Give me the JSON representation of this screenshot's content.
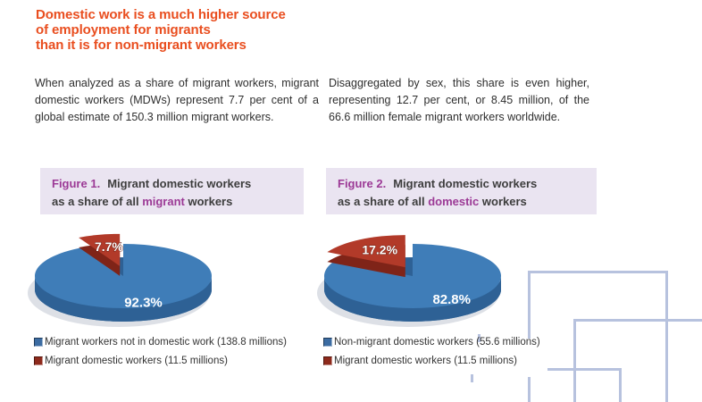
{
  "heading": {
    "text": "Domestic work is a much higher source\nof employment for migrants\nthan it is for non-migrant workers",
    "color": "#e94e1f"
  },
  "intro": {
    "left": "When analyzed as a share of migrant workers, migrant domestic workers (MDWs) represent 7.7 per cent of a global estimate of 150.3 million migrant workers.",
    "right": "Disaggregated by sex, this share is even higher, representing 12.7 per cent, or 8.45 million, of the 66.6 million female migrant workers worldwide."
  },
  "figures": [
    {
      "label": "Figure 1.",
      "title_line1": "Migrant domestic workers",
      "line2_pre": "as a share of all",
      "line2_highlight": "migrant",
      "line2_post": "workers"
    },
    {
      "label": "Figure 2.",
      "title_line1": "Migrant domestic workers",
      "line2_pre": "as a share of all",
      "line2_highlight": "domestic",
      "line2_post": "workers"
    }
  ],
  "chart_data": [
    {
      "type": "pie",
      "style": "3d-exploded",
      "legend_position": "below",
      "title": "Figure 1. Migrant domestic workers as a share of all migrant workers",
      "slices": [
        {
          "label": "Migrant workers not in domestic work (138.8 millions)",
          "value_pct": 92.3,
          "millions": 138.8,
          "display": "92.3%",
          "color": "#3f7db8",
          "wall": "#2e6195",
          "swatch": "#3c6ca2"
        },
        {
          "label": "Migrant domestic workers (11.5 millions)",
          "value_pct": 7.7,
          "millions": 11.5,
          "display": "7.7%",
          "color": "#b23a29",
          "wall": "#7f2418",
          "swatch": "#8e2a1c"
        }
      ]
    },
    {
      "type": "pie",
      "style": "3d-exploded",
      "legend_position": "below",
      "title": "Figure 2. Migrant domestic workers as a share of all domestic workers",
      "slices": [
        {
          "label": "Non-migrant domestic workers (55.6 millions)",
          "value_pct": 82.8,
          "millions": 55.6,
          "display": "82.8%",
          "color": "#3f7db8",
          "wall": "#2e6195",
          "swatch": "#3c6ca2"
        },
        {
          "label": "Migrant domestic workers (11.5 millions)",
          "value_pct": 17.2,
          "millions": 11.5,
          "display": "17.2%",
          "color": "#b23a29",
          "wall": "#7f2418",
          "swatch": "#8e2a1c"
        }
      ]
    }
  ],
  "colors": {
    "heading": "#e94e1f",
    "figure_label": "#9c3a96",
    "figure_box_bg": "#eae4f1",
    "body_text": "#2e2e2e",
    "pie_blue": "#3f7db8",
    "pie_red": "#b23a29",
    "decor_line": "#b7c2de"
  }
}
